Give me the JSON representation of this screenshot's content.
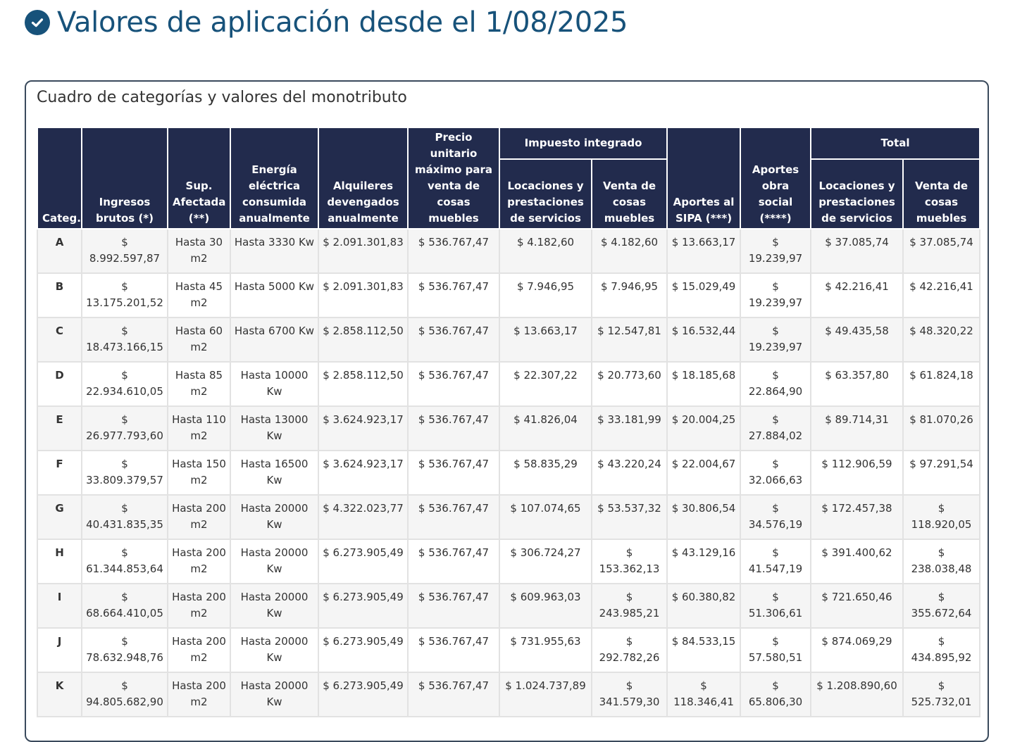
{
  "heading": {
    "title": "Valores de aplicación desde el 1/08/2025",
    "icon": "check-circle-icon"
  },
  "panel": {
    "title": "Cuadro de categorías y valores del monotributo"
  },
  "table": {
    "headers": {
      "categ": "Categ.",
      "ingresos": "Ingresos brutos (*)",
      "sup": "Sup. Afectada (**)",
      "energia": "Energía eléctrica consumida anualmente",
      "alquileres": "Alquileres devengados anualmente",
      "precio": "Precio unitario máximo para venta de cosas muebles",
      "impuesto_group": "Impuesto integrado",
      "imp_locaciones": "Locaciones y prestaciones de servicios",
      "imp_venta": "Venta de cosas muebles",
      "sipa": "Aportes al SIPA (***)",
      "obra_social": "Aportes obra social (****)",
      "total_group": "Total",
      "tot_locaciones": "Locaciones y prestaciones de servicios",
      "tot_venta": "Venta de cosas muebles"
    },
    "rows": [
      [
        "A",
        "$ 8.992.597,87",
        "Hasta 30 m2",
        "Hasta 3330 Kw",
        "$ 2.091.301,83",
        "$ 536.767,47",
        "$ 4.182,60",
        "$ 4.182,60",
        "$ 13.663,17",
        "$ 19.239,97",
        "$ 37.085,74",
        "$ 37.085,74"
      ],
      [
        "B",
        "$ 13.175.201,52",
        "Hasta 45 m2",
        "Hasta 5000 Kw",
        "$ 2.091.301,83",
        "$ 536.767,47",
        "$ 7.946,95",
        "$ 7.946,95",
        "$ 15.029,49",
        "$ 19.239,97",
        "$ 42.216,41",
        "$ 42.216,41"
      ],
      [
        "C",
        "$ 18.473.166,15",
        "Hasta 60 m2",
        "Hasta 6700 Kw",
        "$ 2.858.112,50",
        "$ 536.767,47",
        "$ 13.663,17",
        "$ 12.547,81",
        "$ 16.532,44",
        "$ 19.239,97",
        "$ 49.435,58",
        "$ 48.320,22"
      ],
      [
        "D",
        "$ 22.934.610,05",
        "Hasta 85 m2",
        "Hasta 10000 Kw",
        "$ 2.858.112,50",
        "$ 536.767,47",
        "$ 22.307,22",
        "$ 20.773,60",
        "$ 18.185,68",
        "$ 22.864,90",
        "$ 63.357,80",
        "$ 61.824,18"
      ],
      [
        "E",
        "$ 26.977.793,60",
        "Hasta 110 m2",
        "Hasta 13000 Kw",
        "$ 3.624.923,17",
        "$ 536.767,47",
        "$ 41.826,04",
        "$ 33.181,99",
        "$ 20.004,25",
        "$ 27.884,02",
        "$ 89.714,31",
        "$ 81.070,26"
      ],
      [
        "F",
        "$ 33.809.379,57",
        "Hasta 150 m2",
        "Hasta 16500 Kw",
        "$ 3.624.923,17",
        "$ 536.767,47",
        "$ 58.835,29",
        "$ 43.220,24",
        "$ 22.004,67",
        "$ 32.066,63",
        "$ 112.906,59",
        "$ 97.291,54"
      ],
      [
        "G",
        "$ 40.431.835,35",
        "Hasta 200 m2",
        "Hasta 20000 Kw",
        "$ 4.322.023,77",
        "$ 536.767,47",
        "$ 107.074,65",
        "$ 53.537,32",
        "$ 30.806,54",
        "$ 34.576,19",
        "$ 172.457,38",
        "$ 118.920,05"
      ],
      [
        "H",
        "$ 61.344.853,64",
        "Hasta 200 m2",
        "Hasta 20000 Kw",
        "$ 6.273.905,49",
        "$ 536.767,47",
        "$ 306.724,27",
        "$ 153.362,13",
        "$ 43.129,16",
        "$ 41.547,19",
        "$ 391.400,62",
        "$ 238.038,48"
      ],
      [
        "I",
        "$ 68.664.410,05",
        "Hasta 200 m2",
        "Hasta 20000 Kw",
        "$ 6.273.905,49",
        "$ 536.767,47",
        "$ 609.963,03",
        "$ 243.985,21",
        "$ 60.380,82",
        "$ 51.306,61",
        "$ 721.650,46",
        "$ 355.672,64"
      ],
      [
        "J",
        "$ 78.632.948,76",
        "Hasta 200 m2",
        "Hasta 20000 Kw",
        "$ 6.273.905,49",
        "$ 536.767,47",
        "$ 731.955,63",
        "$ 292.782,26",
        "$ 84.533,15",
        "$ 57.580,51",
        "$ 874.069,29",
        "$ 434.895,92"
      ],
      [
        "K",
        "$ 94.805.682,90",
        "Hasta 200 m2",
        "Hasta 20000 Kw",
        "$ 6.273.905,49",
        "$ 536.767,47",
        "$ 1.024.737,89",
        "$ 341.579,30",
        "$ 118.346,41",
        "$ 65.806,30",
        "$ 1.208.890,60",
        "$ 525.732,01"
      ]
    ]
  },
  "colors": {
    "heading": "#17527a",
    "header_bg": "#222b4d",
    "row_alt": "#f5f5f5"
  }
}
